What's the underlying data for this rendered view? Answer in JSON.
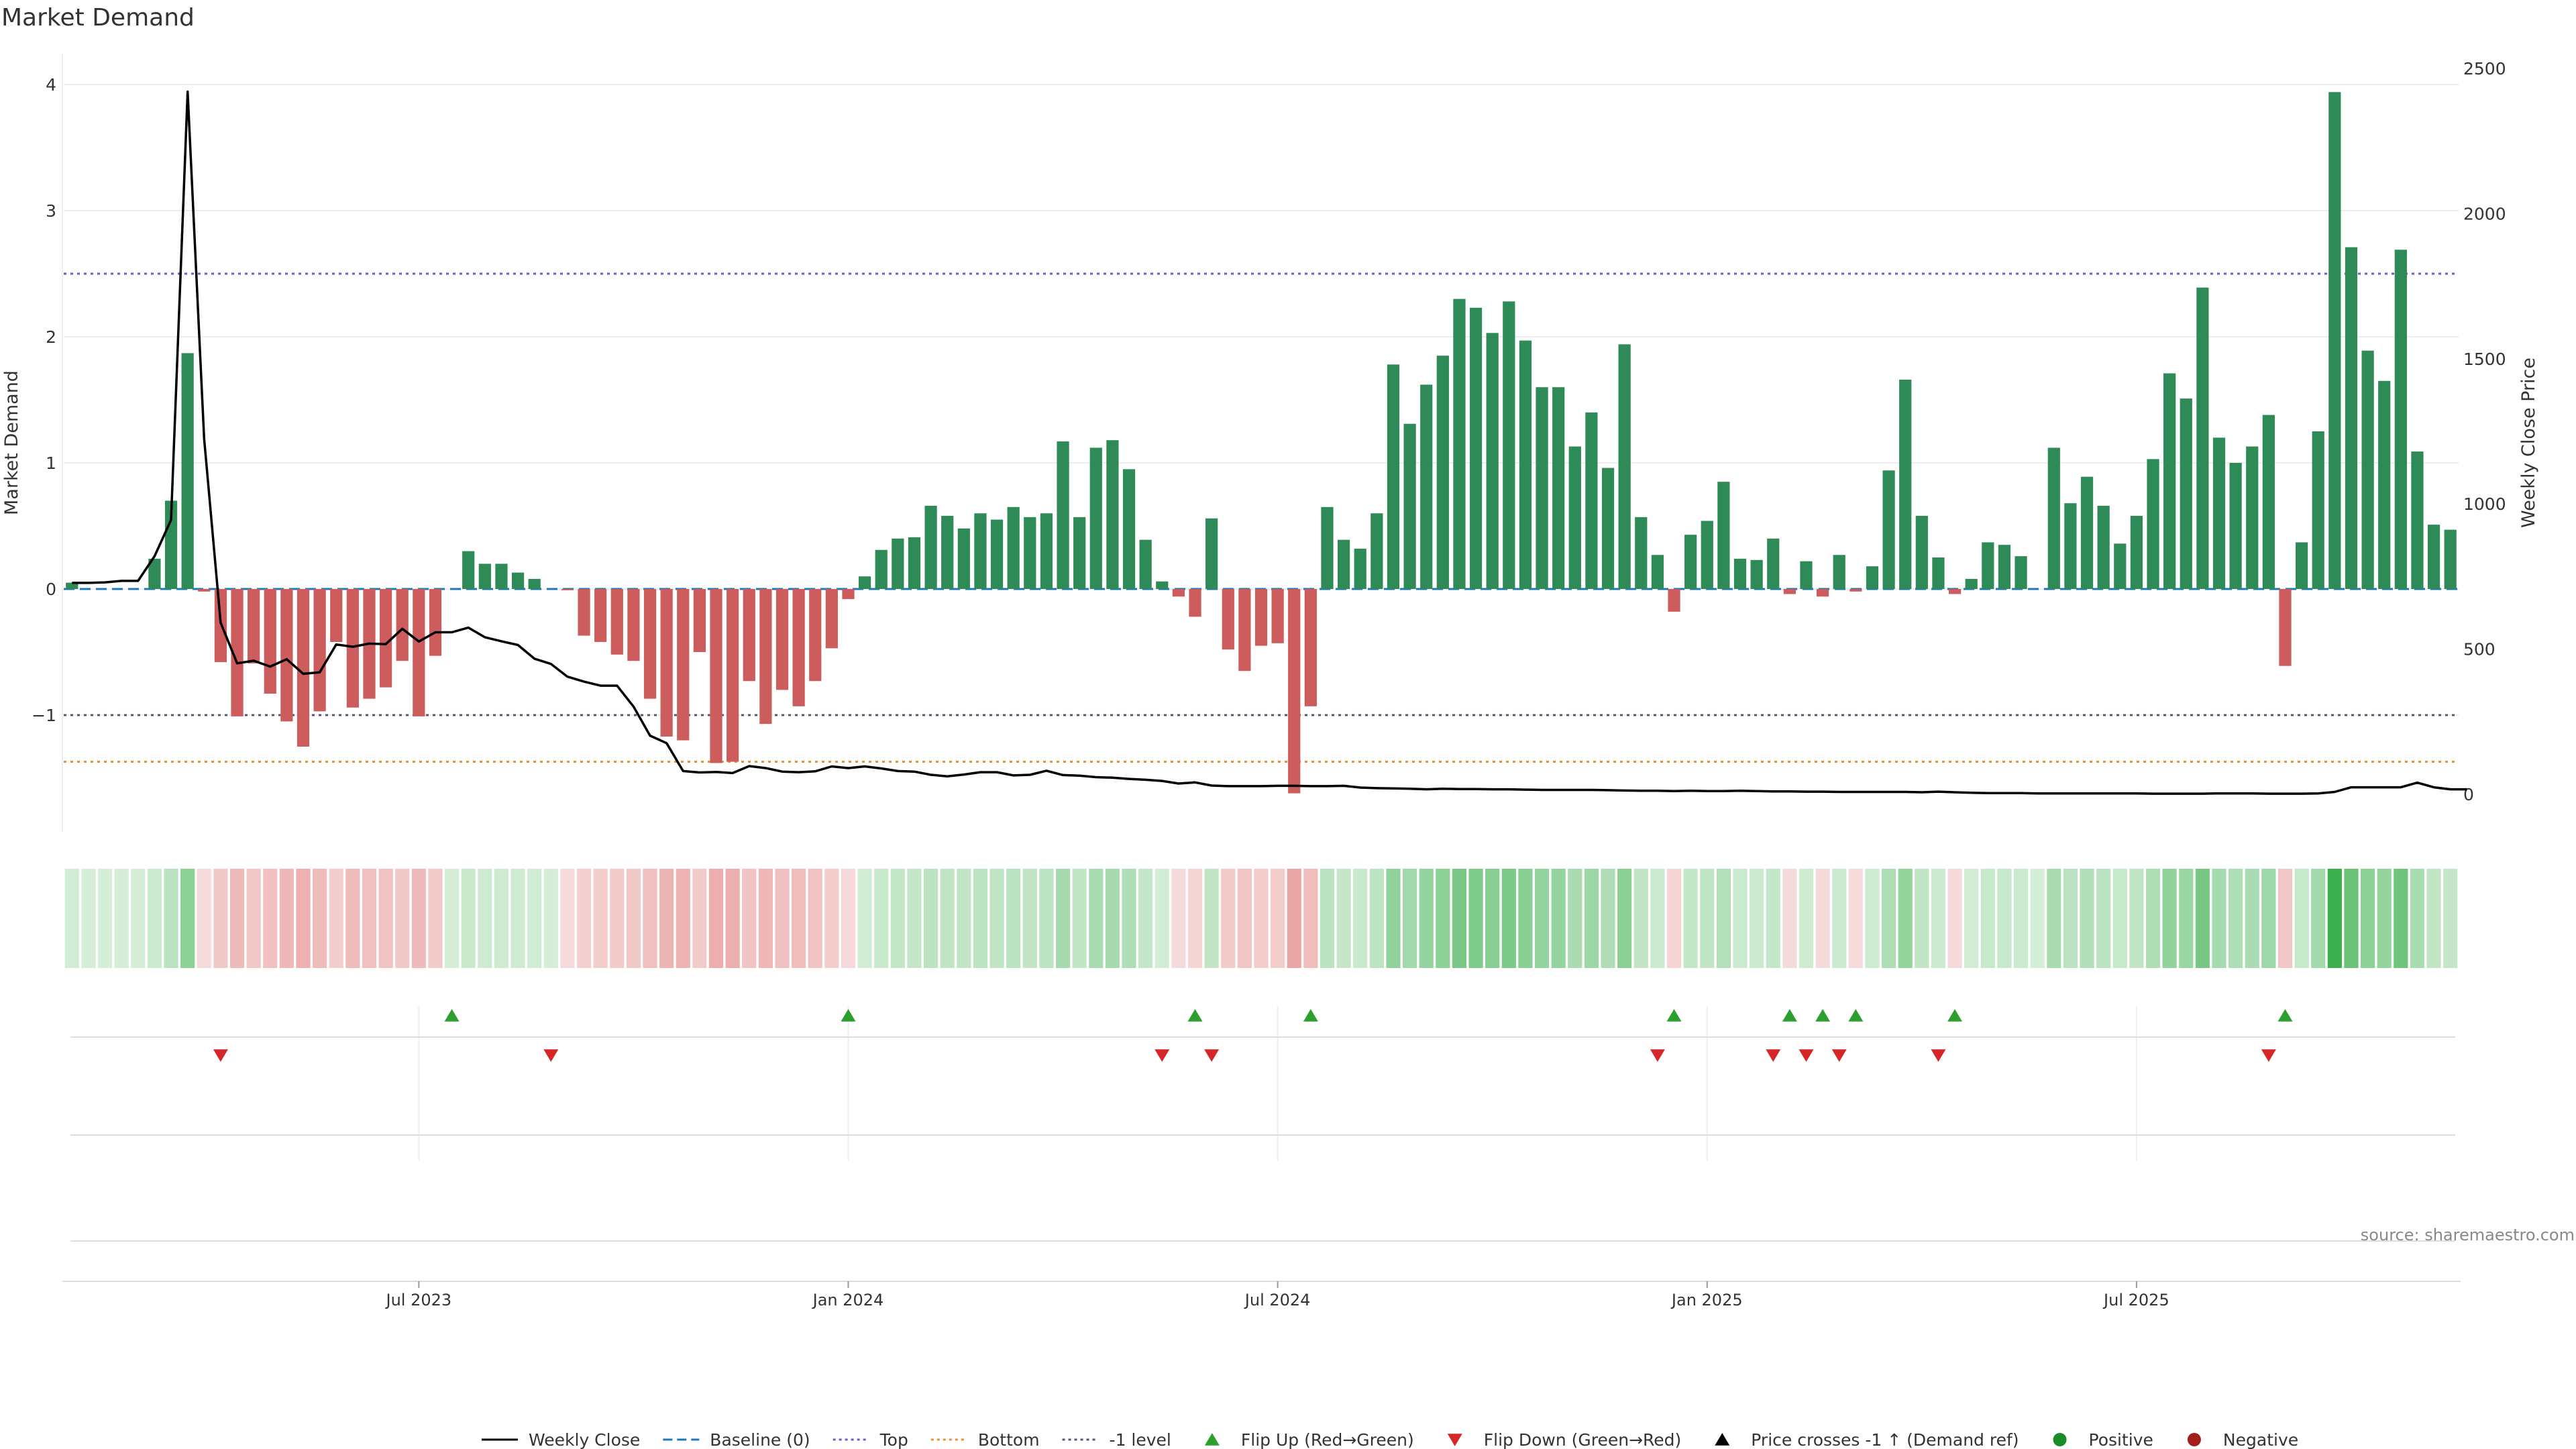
{
  "chart_data": {
    "type": "bar",
    "title": "Market Demand",
    "ylabel_left": "Market Demand",
    "ylabel_right": "Weekly Close Price",
    "source": "source: sharemaestro.com",
    "y_left_ticks": [
      {
        "v": 4,
        "t": "4"
      },
      {
        "v": 3,
        "t": "3"
      },
      {
        "v": 2,
        "t": "2"
      },
      {
        "v": 1,
        "t": "1"
      },
      {
        "v": 0,
        "t": "0"
      },
      {
        "v": -1,
        "t": "−1"
      }
    ],
    "y_left_range": [
      -1.64,
      4.0
    ],
    "y_right_ticks": [
      {
        "v": 2500,
        "t": "2500"
      },
      {
        "v": 2000,
        "t": "2000"
      },
      {
        "v": 1500,
        "t": "1500"
      },
      {
        "v": 1000,
        "t": "1000"
      },
      {
        "v": 500,
        "t": "500"
      },
      {
        "v": 0,
        "t": "0"
      }
    ],
    "y_right_range": [
      0,
      2500
    ],
    "x_ticks": [
      {
        "i": 21,
        "t": "Jul 2023"
      },
      {
        "i": 47,
        "t": "Jan 2024"
      },
      {
        "i": 73,
        "t": "Jul 2024"
      },
      {
        "i": 99,
        "t": "Jan 2025"
      },
      {
        "i": 125,
        "t": "Jul 2025"
      }
    ],
    "reference_lines": {
      "top": 2.5,
      "bottom": -1.37,
      "minus_one": -1,
      "baseline": 0
    },
    "demand": [
      0.05,
      0,
      0,
      0,
      0,
      0.24,
      0.7,
      1.87,
      -0.02,
      -0.58,
      -1.01,
      -0.59,
      -0.83,
      -1.05,
      -1.25,
      -0.97,
      -0.42,
      -0.94,
      -0.87,
      -0.78,
      -0.57,
      -1.01,
      -0.53,
      0,
      0.3,
      0.2,
      0.2,
      0.13,
      0.08,
      0,
      -0.01,
      -0.37,
      -0.42,
      -0.52,
      -0.57,
      -0.87,
      -1.17,
      -1.2,
      -0.5,
      -1.38,
      -1.37,
      -0.73,
      -1.07,
      -0.8,
      -0.93,
      -0.73,
      -0.47,
      -0.08,
      0.1,
      0.31,
      0.4,
      0.41,
      0.66,
      0.58,
      0.48,
      0.6,
      0.55,
      0.65,
      0.57,
      0.6,
      1.17,
      0.57,
      1.12,
      1.18,
      0.95,
      0.39,
      0.06,
      -0.06,
      -0.22,
      0.56,
      -0.48,
      -0.65,
      -0.45,
      -0.43,
      -1.62,
      -0.93,
      0.65,
      0.39,
      0.32,
      0.6,
      1.78,
      1.31,
      1.62,
      1.85,
      2.3,
      2.23,
      2.03,
      2.28,
      1.97,
      1.6,
      1.6,
      1.13,
      1.4,
      0.96,
      1.94,
      0.57,
      0.27,
      -0.18,
      0.43,
      0.54,
      0.85,
      0.24,
      0.23,
      0.4,
      -0.04,
      0.22,
      -0.06,
      0.27,
      -0.02,
      0.18,
      0.94,
      1.66,
      0.58,
      0.25,
      -0.04,
      0.08,
      0.37,
      0.35,
      0.26,
      0,
      1.12,
      0.68,
      0.89,
      0.66,
      0.36,
      0.58,
      1.03,
      1.71,
      1.51,
      2.39,
      1.2,
      1.0,
      1.13,
      1.38,
      -0.61,
      0.37,
      1.25,
      3.94,
      2.71,
      1.89,
      1.65,
      2.69,
      1.09,
      0.51,
      0.47
    ],
    "weekly_close": [
      728,
      728,
      730,
      735,
      735,
      820,
      945,
      2420,
      1225,
      591,
      451,
      460,
      440,
      465,
      415,
      420,
      516,
      508,
      519,
      517,
      570,
      526,
      558,
      558,
      574,
      541,
      527,
      514,
      467,
      449,
      405,
      388,
      374,
      374,
      302,
      202,
      176,
      80,
      75,
      77,
      73,
      97,
      90,
      78,
      76,
      79,
      96,
      90,
      96,
      89,
      80,
      78,
      67,
      62,
      68,
      76,
      76,
      65,
      67,
      81,
      66,
      64,
      59,
      57,
      53,
      50,
      46,
      37,
      41,
      30,
      28,
      28,
      28,
      29,
      29,
      28,
      28,
      29,
      23,
      21,
      20,
      19,
      17,
      19,
      18,
      18,
      17,
      17,
      16,
      15,
      15,
      15,
      15,
      14,
      13,
      12,
      12,
      11,
      12,
      11,
      11,
      12,
      11,
      10,
      10,
      9,
      9,
      8,
      8,
      8,
      8,
      8,
      7,
      9,
      7,
      5,
      4,
      4,
      4,
      3,
      3,
      3,
      3,
      3,
      3,
      3,
      2,
      2,
      2,
      2,
      3,
      3,
      3,
      2,
      2,
      2,
      3,
      8,
      24,
      24,
      24,
      24,
      40,
      24,
      17,
      17
    ],
    "flip_up_indices": [
      23,
      47,
      68,
      75,
      97,
      104,
      106,
      108,
      114,
      134
    ],
    "flip_down_indices": [
      9,
      29,
      66,
      69,
      96,
      103,
      105,
      107,
      113,
      133
    ],
    "legend": [
      {
        "label": "Weekly Close",
        "kind": "line",
        "color": "#000000"
      },
      {
        "label": "Baseline (0)",
        "kind": "dash",
        "color": "#1f77b4"
      },
      {
        "label": "Top",
        "kind": "dot",
        "color": "#6a5acd"
      },
      {
        "label": "Bottom",
        "kind": "dot",
        "color": "#e69138"
      },
      {
        "label": "-1 level",
        "kind": "dot",
        "color": "#555577"
      },
      {
        "label": "Flip Up (Red→Green)",
        "kind": "tri-up",
        "color": "#2ca02c"
      },
      {
        "label": "Flip Down (Green→Red)",
        "kind": "tri-down",
        "color": "#d62728"
      },
      {
        "label": "Price crosses -1 ↑ (Demand ref)",
        "kind": "tri-up",
        "color": "#000000"
      },
      {
        "label": "Positive",
        "kind": "dot-circle",
        "color": "#1a8c2a"
      },
      {
        "label": "Negative",
        "kind": "dot-circle",
        "color": "#a31d1d"
      }
    ],
    "colors": {
      "positive": "#2e8b57",
      "negative": "#cd5c5c",
      "strip_pos": "#3cb04d",
      "strip_neg": "#d95a5a",
      "up_marker": "#2ca02c",
      "down_marker": "#d62728"
    }
  }
}
